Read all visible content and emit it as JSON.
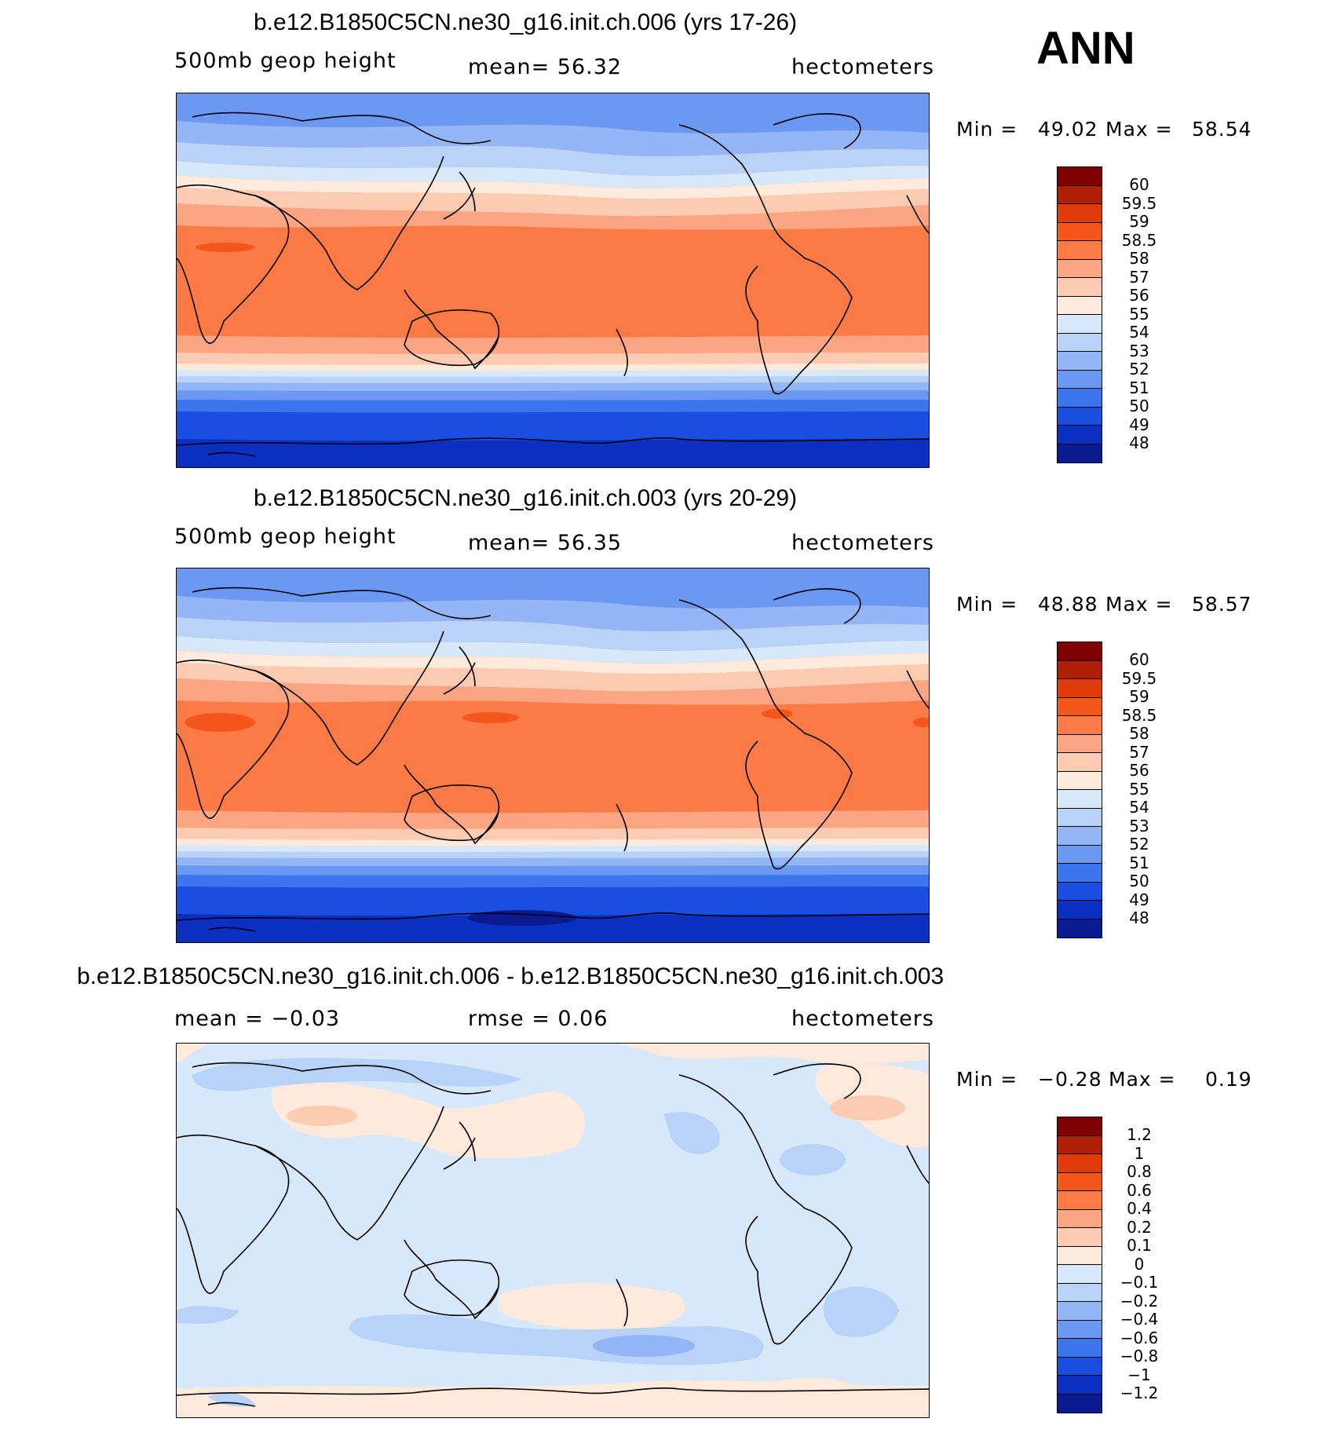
{
  "season": "ANN",
  "panels": [
    {
      "title": "b.e12.B1850C5CN.ne30_g16.init.ch.006 (yrs 17-26)",
      "left_label": "500mb  geop  height",
      "center_label": "mean=   56.32",
      "right_label": "hectometers",
      "min_label": "Min  =",
      "min_value": "49.02",
      "max_label": "Max  =",
      "max_value": "58.54",
      "colorbar_labels": [
        "60",
        "59.5",
        "59",
        "58.5",
        "58",
        "57",
        "56",
        "55",
        "54",
        "53",
        "52",
        "51",
        "50",
        "49",
        "48"
      ]
    },
    {
      "title": "b.e12.B1850C5CN.ne30_g16.init.ch.003 (yrs 20-29)",
      "left_label": "500mb  geop  height",
      "center_label": "mean=   56.35",
      "right_label": "hectometers",
      "min_label": "Min  =",
      "min_value": "48.88",
      "max_label": "Max  =",
      "max_value": "58.57",
      "colorbar_labels": [
        "60",
        "59.5",
        "59",
        "58.5",
        "58",
        "57",
        "56",
        "55",
        "54",
        "53",
        "52",
        "51",
        "50",
        "49",
        "48"
      ]
    },
    {
      "title": "b.e12.B1850C5CN.ne30_g16.init.ch.006 - b.e12.B1850C5CN.ne30_g16.init.ch.003",
      "left_label": "mean =    −0.03",
      "center_label": "rmse =     0.06",
      "right_label": "hectometers",
      "min_label": "Min  =",
      "min_value": "−0.28",
      "max_label": "Max  =",
      "max_value": "0.19",
      "colorbar_labels": [
        "1.2",
        "1",
        "0.8",
        "0.6",
        "0.4",
        "0.2",
        "0.1",
        "0",
        "−0.1",
        "−0.2",
        "−0.4",
        "−0.6",
        "−0.8",
        "−1",
        "−1.2"
      ]
    }
  ],
  "palette": [
    "#7f0000",
    "#b01f05",
    "#df3a0a",
    "#f5561c",
    "#fb7a45",
    "#fca582",
    "#fdcbb2",
    "#feeada",
    "#d8e8fb",
    "#b8d2f8",
    "#94b6f6",
    "#6a98f3",
    "#3d75ef",
    "#1b4ee0",
    "#0b2fc0",
    "#0a1a90"
  ]
}
